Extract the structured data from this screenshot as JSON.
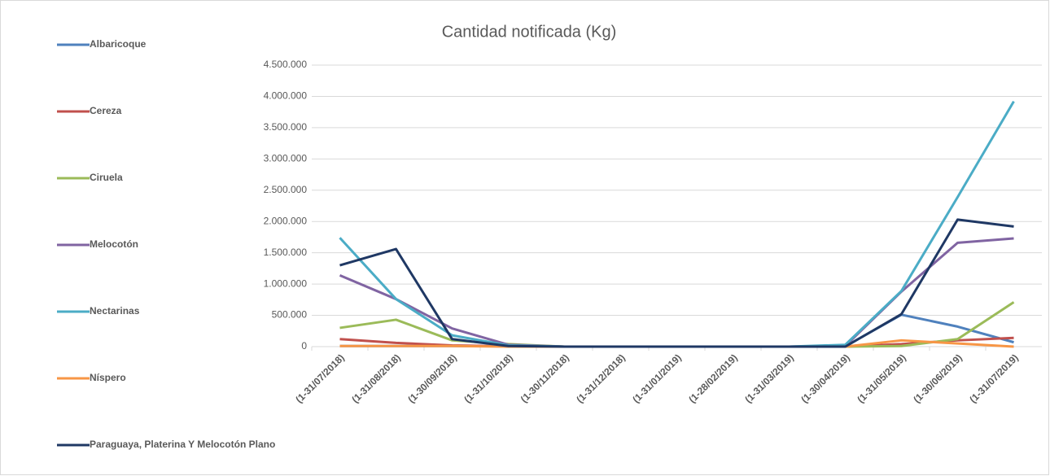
{
  "chart_data": {
    "type": "line",
    "title": "Cantidad notificada  (Kg)",
    "categories": [
      "(1-31/07/2018)",
      "(1-31/08/2018)",
      "(1-30/09/2018)",
      "(1-31/10/2018)",
      "(1-30/11/2018)",
      "(1-31/12/2018)",
      "(1-31/01/2019)",
      "(1-28/02/2019)",
      "(1-31/03/2019)",
      "(1-30/04/2019)",
      "(1-31/05/2019)",
      "(1-30/06/2019)",
      "(1-31/07/2019)"
    ],
    "series": [
      {
        "name": "Albaricoque",
        "color": "#4f81bd",
        "values": [
          10000,
          10000,
          10000,
          5000,
          0,
          0,
          0,
          0,
          0,
          5000,
          510000,
          320000,
          70000
        ]
      },
      {
        "name": "Cereza",
        "color": "#c0504d",
        "values": [
          120000,
          60000,
          20000,
          5000,
          0,
          0,
          0,
          0,
          0,
          0,
          40000,
          100000,
          140000
        ]
      },
      {
        "name": "Ciruela",
        "color": "#9bbb59",
        "values": [
          300000,
          430000,
          100000,
          40000,
          0,
          0,
          0,
          0,
          0,
          0,
          10000,
          120000,
          710000
        ]
      },
      {
        "name": "Melocotón",
        "color": "#8064a2",
        "values": [
          1140000,
          760000,
          290000,
          30000,
          0,
          0,
          0,
          0,
          0,
          10000,
          880000,
          1660000,
          1730000
        ]
      },
      {
        "name": "Nectarinas",
        "color": "#4bacc6",
        "values": [
          1740000,
          760000,
          180000,
          20000,
          0,
          0,
          0,
          0,
          0,
          30000,
          890000,
          2390000,
          3920000
        ]
      },
      {
        "name": "Níspero",
        "color": "#f79646",
        "values": [
          10000,
          10000,
          10000,
          0,
          0,
          0,
          0,
          0,
          0,
          0,
          100000,
          50000,
          0
        ]
      },
      {
        "name": "Paraguaya, Platerina Y Melocotón Plano",
        "color": "#1f3864",
        "values": [
          1300000,
          1560000,
          120000,
          10000,
          0,
          0,
          0,
          0,
          0,
          0,
          520000,
          2030000,
          1920000
        ]
      }
    ],
    "ylim": [
      0,
      4500000
    ],
    "yticks": [
      0,
      {
        "value": 500000,
        "label": "500.000"
      },
      {
        "value": 1000000,
        "label": "1.000.000"
      },
      {
        "value": 1500000,
        "label": "1.500.000"
      },
      {
        "value": 2000000,
        "label": "2.000.000"
      },
      {
        "value": 2500000,
        "label": "2.500.000"
      },
      {
        "value": 3000000,
        "label": "3.000.000"
      },
      {
        "value": 3500000,
        "label": "3.500.000"
      },
      {
        "value": 4000000,
        "label": "4.000.000"
      },
      {
        "value": 4500000,
        "label": "4.500.000"
      }
    ],
    "grid": true,
    "legend": "left"
  }
}
